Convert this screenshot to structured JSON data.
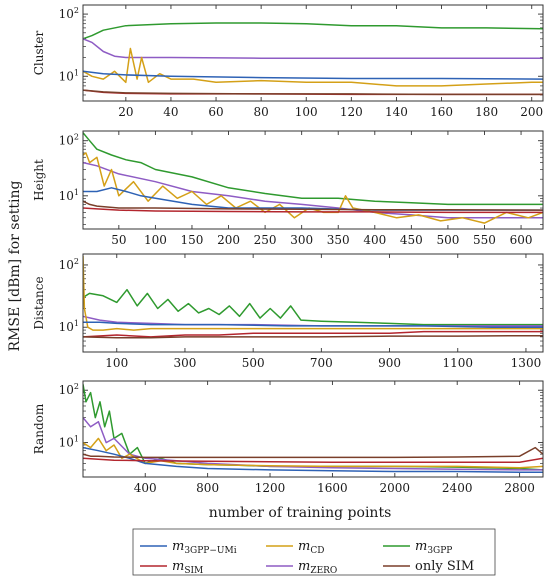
{
  "ylabel": "RMSE [dBm] for setting",
  "xlabel": "number of training points",
  "legend": {
    "entries": [
      {
        "label": "m3GPP−UMi",
        "base": "m",
        "sub": "3GPP−UMi",
        "color": "#2e62b5"
      },
      {
        "label": "mCD",
        "base": "m",
        "sub": "CD",
        "color": "#d4a017"
      },
      {
        "label": "m3GPP",
        "base": "m",
        "sub": "3GPP",
        "color": "#2f9a2f"
      },
      {
        "label": "mSIM",
        "base": "m",
        "sub": "SIM",
        "color": "#b3262e"
      },
      {
        "label": "mZERO",
        "base": "m",
        "sub": "ZERO",
        "color": "#8e5cc4"
      },
      {
        "label": "only SIM",
        "base": "only SIM",
        "sub": "",
        "color": "#7a3f2a"
      }
    ]
  },
  "chart_data": [
    {
      "type": "line",
      "panel_label": "Cluster",
      "y_scale": "log",
      "ylim": [
        4,
        140
      ],
      "yticks": [
        10,
        100
      ],
      "ytick_labels": [
        "10^1",
        "10^2"
      ],
      "xlim": [
        1,
        205
      ],
      "xticks": [
        20,
        40,
        60,
        80,
        100,
        120,
        140,
        160,
        180,
        200
      ],
      "series": [
        {
          "key": "m3GPP",
          "color": "#2f9a2f",
          "x": [
            1,
            5,
            10,
            20,
            40,
            60,
            80,
            100,
            120,
            140,
            160,
            180,
            205
          ],
          "y": [
            40,
            45,
            55,
            65,
            70,
            72,
            72,
            70,
            65,
            65,
            60,
            60,
            58
          ]
        },
        {
          "key": "mZERO",
          "color": "#8e5cc4",
          "x": [
            1,
            5,
            10,
            15,
            20,
            40,
            80,
            120,
            160,
            205
          ],
          "y": [
            40,
            35,
            25,
            21,
            20,
            20,
            19.5,
            19.5,
            19.5,
            19.5
          ]
        },
        {
          "key": "mCD",
          "color": "#d4a017",
          "x": [
            1,
            5,
            10,
            15,
            20,
            22,
            25,
            27,
            30,
            35,
            40,
            50,
            60,
            80,
            100,
            120,
            140,
            160,
            180,
            200,
            205
          ],
          "y": [
            12,
            10,
            9,
            12,
            8,
            28,
            9,
            20,
            8,
            11,
            9,
            9,
            8,
            8.5,
            8,
            8,
            7,
            7,
            7.5,
            8,
            8
          ]
        },
        {
          "key": "m3GPP−UMi",
          "color": "#2e62b5",
          "x": [
            1,
            10,
            20,
            40,
            80,
            120,
            160,
            205
          ],
          "y": [
            12,
            11,
            10.5,
            10,
            9.5,
            9.2,
            9.2,
            9
          ]
        },
        {
          "key": "mSIM",
          "color": "#b3262e",
          "x": [
            1,
            10,
            20,
            40,
            80,
            120,
            160,
            205
          ],
          "y": [
            6,
            5.5,
            5.3,
            5.2,
            5.2,
            5.1,
            5.1,
            5.1
          ]
        },
        {
          "key": "only SIM",
          "color": "#7a3f2a",
          "x": [
            1,
            10,
            20,
            40,
            80,
            120,
            160,
            205
          ],
          "y": [
            6,
            5.6,
            5.4,
            5.3,
            5.2,
            5.2,
            5.1,
            5.1
          ]
        }
      ]
    },
    {
      "type": "line",
      "panel_label": "Height",
      "y_scale": "log",
      "ylim": [
        2.5,
        150
      ],
      "yticks": [
        10,
        100
      ],
      "ytick_labels": [
        "10^1",
        "10^2"
      ],
      "xlim": [
        1,
        630
      ],
      "xticks": [
        50,
        100,
        150,
        200,
        250,
        300,
        350,
        400,
        450,
        500,
        550,
        600
      ],
      "series": [
        {
          "key": "m3GPP",
          "color": "#2f9a2f",
          "x": [
            1,
            10,
            20,
            40,
            60,
            80,
            100,
            150,
            200,
            250,
            300,
            350,
            400,
            450,
            500,
            550,
            600,
            630
          ],
          "y": [
            140,
            100,
            70,
            55,
            45,
            40,
            30,
            22,
            14,
            11,
            9,
            9,
            8,
            7.5,
            7,
            7,
            7,
            7
          ]
        },
        {
          "key": "mZERO",
          "color": "#8e5cc4",
          "x": [
            1,
            20,
            50,
            100,
            150,
            200,
            250,
            300,
            350,
            400,
            450,
            500,
            550,
            600,
            630
          ],
          "y": [
            40,
            35,
            25,
            18,
            12,
            10,
            8,
            7,
            6,
            5,
            4.5,
            4,
            4,
            4,
            4
          ]
        },
        {
          "key": "mCD",
          "color": "#d4a017",
          "x": [
            1,
            5,
            10,
            20,
            30,
            40,
            50,
            70,
            90,
            110,
            130,
            150,
            170,
            190,
            210,
            230,
            250,
            270,
            290,
            310,
            330,
            350,
            360,
            370,
            400,
            430,
            460,
            490,
            520,
            550,
            580,
            610,
            630
          ],
          "y": [
            55,
            60,
            40,
            50,
            15,
            30,
            10,
            18,
            8,
            15,
            9,
            12,
            7,
            10,
            6,
            8,
            5,
            7,
            4,
            6,
            5,
            5,
            10,
            6,
            5,
            4,
            4.5,
            3.5,
            4,
            3.2,
            5,
            4,
            5
          ]
        },
        {
          "key": "m3GPP−UMi",
          "color": "#2e62b5",
          "x": [
            1,
            20,
            40,
            60,
            80,
            100,
            150,
            200,
            250,
            300,
            400,
            500,
            630
          ],
          "y": [
            12,
            12,
            14,
            12,
            10,
            9,
            7,
            6,
            6,
            6,
            5.5,
            5.5,
            5.5
          ]
        },
        {
          "key": "mSIM",
          "color": "#b3262e",
          "x": [
            1,
            20,
            50,
            100,
            200,
            300,
            400,
            500,
            630
          ],
          "y": [
            6,
            5.8,
            5.5,
            5.3,
            5.2,
            5.1,
            5.1,
            5,
            5
          ]
        },
        {
          "key": "only SIM",
          "color": "#7a3f2a",
          "x": [
            1,
            10,
            20,
            50,
            100,
            200,
            300,
            400,
            500,
            630
          ],
          "y": [
            8,
            7,
            6.5,
            6,
            6,
            5.8,
            5.7,
            5.6,
            5.6,
            5.5
          ]
        }
      ]
    },
    {
      "type": "line",
      "panel_label": "Distance",
      "y_scale": "log",
      "ylim": [
        4,
        150
      ],
      "yticks": [
        10,
        100
      ],
      "ytick_labels": [
        "10^1",
        "10^2"
      ],
      "xlim": [
        1,
        1350
      ],
      "xticks": [
        100,
        300,
        500,
        700,
        900,
        1100,
        1300
      ],
      "series": [
        {
          "key": "m3GPP",
          "color": "#2f9a2f",
          "x": [
            1,
            20,
            60,
            100,
            130,
            160,
            190,
            220,
            250,
            280,
            310,
            340,
            370,
            400,
            430,
            460,
            490,
            520,
            550,
            580,
            610,
            640,
            700,
            800,
            900,
            1000,
            1100,
            1200,
            1350
          ],
          "y": [
            30,
            35,
            32,
            25,
            40,
            22,
            35,
            20,
            28,
            18,
            24,
            17,
            20,
            16,
            22,
            15,
            24,
            14,
            20,
            14,
            22,
            13,
            12.5,
            12,
            11.5,
            11,
            11,
            11,
            11
          ]
        },
        {
          "key": "mZERO",
          "color": "#8e5cc4",
          "x": [
            1,
            50,
            100,
            200,
            300,
            500,
            700,
            900,
            1100,
            1350
          ],
          "y": [
            15,
            13,
            12,
            11.5,
            11,
            11,
            10.5,
            10.5,
            10.5,
            10.5
          ]
        },
        {
          "key": "mCD",
          "color": "#d4a017",
          "x": [
            1,
            5,
            15,
            30,
            60,
            100,
            150,
            200,
            300,
            400,
            500,
            600,
            700,
            800,
            900,
            1000,
            1100,
            1200,
            1350
          ],
          "y": [
            140,
            20,
            10,
            9,
            9,
            9.5,
            9,
            9.5,
            9.5,
            9.5,
            9.5,
            9.5,
            9.5,
            9.5,
            9.5,
            9.5,
            9.5,
            9.5,
            9.5
          ]
        },
        {
          "key": "m3GPP−UMi",
          "color": "#2e62b5",
          "x": [
            1,
            50,
            100,
            200,
            400,
            600,
            800,
            1000,
            1200,
            1350
          ],
          "y": [
            12,
            12,
            11.5,
            11,
            11,
            10.5,
            10.5,
            10.5,
            10,
            10
          ]
        },
        {
          "key": "mSIM",
          "color": "#b3262e",
          "x": [
            1,
            100,
            200,
            300,
            400,
            500,
            700,
            900,
            1000,
            1100,
            1200,
            1300,
            1350
          ],
          "y": [
            7,
            7.5,
            7,
            7.5,
            7.5,
            8,
            8,
            8,
            8.5,
            8.5,
            8.5,
            8.5,
            8.5
          ]
        },
        {
          "key": "only SIM",
          "color": "#7a3f2a",
          "x": [
            1,
            100,
            200,
            300,
            500,
            700,
            900,
            1100,
            1300,
            1350
          ],
          "y": [
            7,
            6.8,
            6.8,
            7,
            7,
            7,
            7.2,
            7.2,
            7.3,
            7.3
          ]
        }
      ]
    },
    {
      "type": "line",
      "panel_label": "Random",
      "y_scale": "log",
      "ylim": [
        2.2,
        150
      ],
      "yticks": [
        10,
        100
      ],
      "ytick_labels": [
        "10^1",
        "10^2"
      ],
      "xlim": [
        1,
        2950
      ],
      "xticks": [
        400,
        800,
        1200,
        1600,
        2000,
        2400,
        2800
      ],
      "series": [
        {
          "key": "m3GPP",
          "color": "#2f9a2f",
          "x": [
            1,
            20,
            50,
            80,
            110,
            140,
            170,
            200,
            250,
            300,
            350,
            400,
            500,
            600,
            800,
            1000,
            1200,
            1600,
            2000,
            2400,
            2800,
            2950
          ],
          "y": [
            130,
            60,
            90,
            30,
            60,
            20,
            40,
            12,
            15,
            6,
            8,
            4,
            5,
            4,
            3.8,
            3.7,
            3.5,
            3.5,
            3.5,
            3.4,
            3.2,
            3
          ]
        },
        {
          "key": "mZERO",
          "color": "#8e5cc4",
          "x": [
            1,
            50,
            100,
            150,
            200,
            300,
            400,
            600,
            800,
            1200,
            1600,
            2000,
            2400,
            2800,
            2950
          ],
          "y": [
            30,
            20,
            25,
            10,
            12,
            6,
            5,
            4.5,
            4,
            3.5,
            3.3,
            3.2,
            3.1,
            3,
            3
          ]
        },
        {
          "key": "mCD",
          "color": "#d4a017",
          "x": [
            1,
            50,
            100,
            150,
            200,
            250,
            300,
            400,
            500,
            600,
            800,
            1000,
            1200,
            1600,
            2000,
            2400,
            2800,
            2950
          ],
          "y": [
            10,
            8,
            12,
            7,
            9,
            5,
            6,
            4,
            4.5,
            4,
            3.8,
            3.7,
            3.6,
            3.5,
            3.5,
            3.5,
            3.3,
            3.5
          ]
        },
        {
          "key": "m3GPP−UMi",
          "color": "#2e62b5",
          "x": [
            1,
            100,
            200,
            300,
            400,
            600,
            800,
            1200,
            1600,
            2000,
            2400,
            2800,
            2950
          ],
          "y": [
            8,
            7,
            6,
            5,
            4,
            3.5,
            3.2,
            3,
            2.9,
            2.8,
            2.8,
            2.7,
            2.7
          ]
        },
        {
          "key": "mSIM",
          "color": "#b3262e",
          "x": [
            1,
            100,
            200,
            400,
            800,
            1200,
            1600,
            2000,
            2400,
            2800,
            2950
          ],
          "y": [
            5,
            4.8,
            4.6,
            4.5,
            4.4,
            4.3,
            4.2,
            4.2,
            4.2,
            4.2,
            5
          ]
        },
        {
          "key": "only SIM",
          "color": "#7a3f2a",
          "x": [
            1,
            50,
            100,
            200,
            400,
            800,
            1200,
            1600,
            2000,
            2400,
            2800,
            2900,
            2950
          ],
          "y": [
            6,
            5.5,
            5.5,
            5.3,
            5.2,
            5.2,
            5.2,
            5.2,
            5.2,
            5.3,
            5.5,
            8,
            6
          ]
        }
      ]
    }
  ]
}
